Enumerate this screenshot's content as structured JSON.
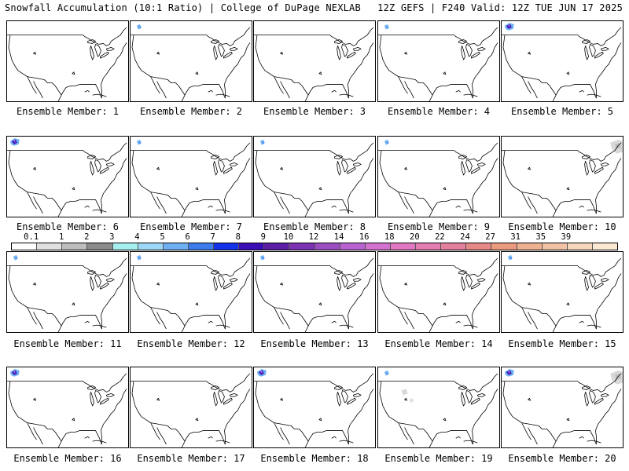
{
  "header": {
    "left": "Snowfall Accumulation (10:1 Ratio) | College of DuPage NEXLAB",
    "right": "12Z GEFS | F240 Valid: 12Z TUE JUN 17 2025"
  },
  "panels": [
    {
      "label": "Ensemble Member: 1",
      "snow": []
    },
    {
      "label": "Ensemble Member: 2",
      "snow": [
        "pnw-light"
      ]
    },
    {
      "label": "Ensemble Member: 3",
      "snow": []
    },
    {
      "label": "Ensemble Member: 4",
      "snow": [
        "pnw-light"
      ]
    },
    {
      "label": "Ensemble Member: 5",
      "snow": [
        "pnw-heavy"
      ]
    },
    {
      "label": "Ensemble Member: 6",
      "snow": [
        "pnw-heavy"
      ]
    },
    {
      "label": "Ensemble Member: 7",
      "snow": [
        "pnw-light"
      ]
    },
    {
      "label": "Ensemble Member: 8",
      "snow": [
        "pnw-light"
      ]
    },
    {
      "label": "Ensemble Member: 9",
      "snow": [
        "pnw-light"
      ]
    },
    {
      "label": "Ensemble Member: 10",
      "snow": [
        "ne-gray"
      ]
    },
    {
      "label": "Ensemble Member: 11",
      "snow": [
        "pnw-light"
      ]
    },
    {
      "label": "Ensemble Member: 12",
      "snow": [
        "pnw-light"
      ]
    },
    {
      "label": "Ensemble Member: 13",
      "snow": [
        "pnw-light"
      ]
    },
    {
      "label": "Ensemble Member: 14",
      "snow": []
    },
    {
      "label": "Ensemble Member: 15",
      "snow": [
        "pnw-light"
      ]
    },
    {
      "label": "Ensemble Member: 16",
      "snow": [
        "pnw-heavy"
      ]
    },
    {
      "label": "Ensemble Member: 17",
      "snow": []
    },
    {
      "label": "Ensemble Member: 18",
      "snow": [
        "pnw-heavy"
      ]
    },
    {
      "label": "Ensemble Member: 19",
      "snow": [
        "pnw-light",
        "west-gray"
      ]
    },
    {
      "label": "Ensemble Member: 20",
      "snow": [
        "pnw-heavy",
        "ne-gray"
      ]
    }
  ],
  "scale": {
    "labels": [
      "0.1",
      "1",
      "2",
      "3",
      "4",
      "5",
      "6",
      "7",
      "8",
      "9",
      "10",
      "12",
      "14",
      "16",
      "18",
      "20",
      "22",
      "24",
      "27",
      "31",
      "35",
      "39"
    ],
    "colors": [
      "#ffffff",
      "#e0e0e0",
      "#bdbdbd",
      "#8c8c8c",
      "#a5f0ef",
      "#9fd8f6",
      "#6fb0f2",
      "#3c7cec",
      "#1533e6",
      "#3b0fb6",
      "#5b1ea4",
      "#7b34b1",
      "#9a4ec1",
      "#b963d1",
      "#d273cf",
      "#e079c2",
      "#e47db0",
      "#e3809e",
      "#e58a88",
      "#ea9a7e",
      "#eeb192",
      "#f1c3a6",
      "#f6d6bc",
      "#fbe9d4"
    ]
  }
}
